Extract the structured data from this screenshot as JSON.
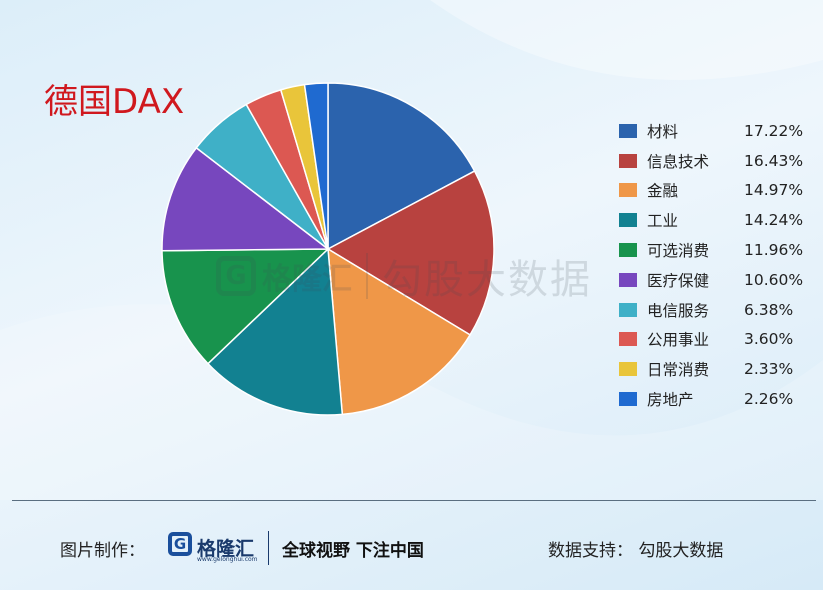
{
  "title": "德国DAX",
  "watermark": {
    "logo_letter": "G",
    "brand": "格隆汇",
    "text": "勾股大数据"
  },
  "chart_data": {
    "type": "pie",
    "title": "德国DAX",
    "categories": [
      "材料",
      "信息技术",
      "金融",
      "工业",
      "可选消费",
      "医疗保健",
      "电信服务",
      "公用事业",
      "日常消费",
      "房地产"
    ],
    "values": [
      17.22,
      16.43,
      14.97,
      14.24,
      11.96,
      10.6,
      6.38,
      3.6,
      2.33,
      2.26
    ],
    "value_labels": [
      "17.22%",
      "16.43%",
      "14.97%",
      "14.24%",
      "11.96%",
      "10.60%",
      "6.38%",
      "3.60%",
      "2.33%",
      "2.26%"
    ],
    "colors": [
      "#2b63ad",
      "#b8423f",
      "#ef9748",
      "#128191",
      "#18934d",
      "#7747be",
      "#3fb0c7",
      "#dc5852",
      "#e9c53a",
      "#1f6ad0"
    ],
    "start_angle": "12 o'clock",
    "direction": "clockwise",
    "legend_position": "right"
  },
  "footer": {
    "credit_label": "图片制作：",
    "logo_letter": "G",
    "brand": "格隆汇",
    "brand_url": "www.gelonghui.com",
    "slogan": "全球视野 下注中国",
    "support": "数据支持：  勾股大数据"
  }
}
